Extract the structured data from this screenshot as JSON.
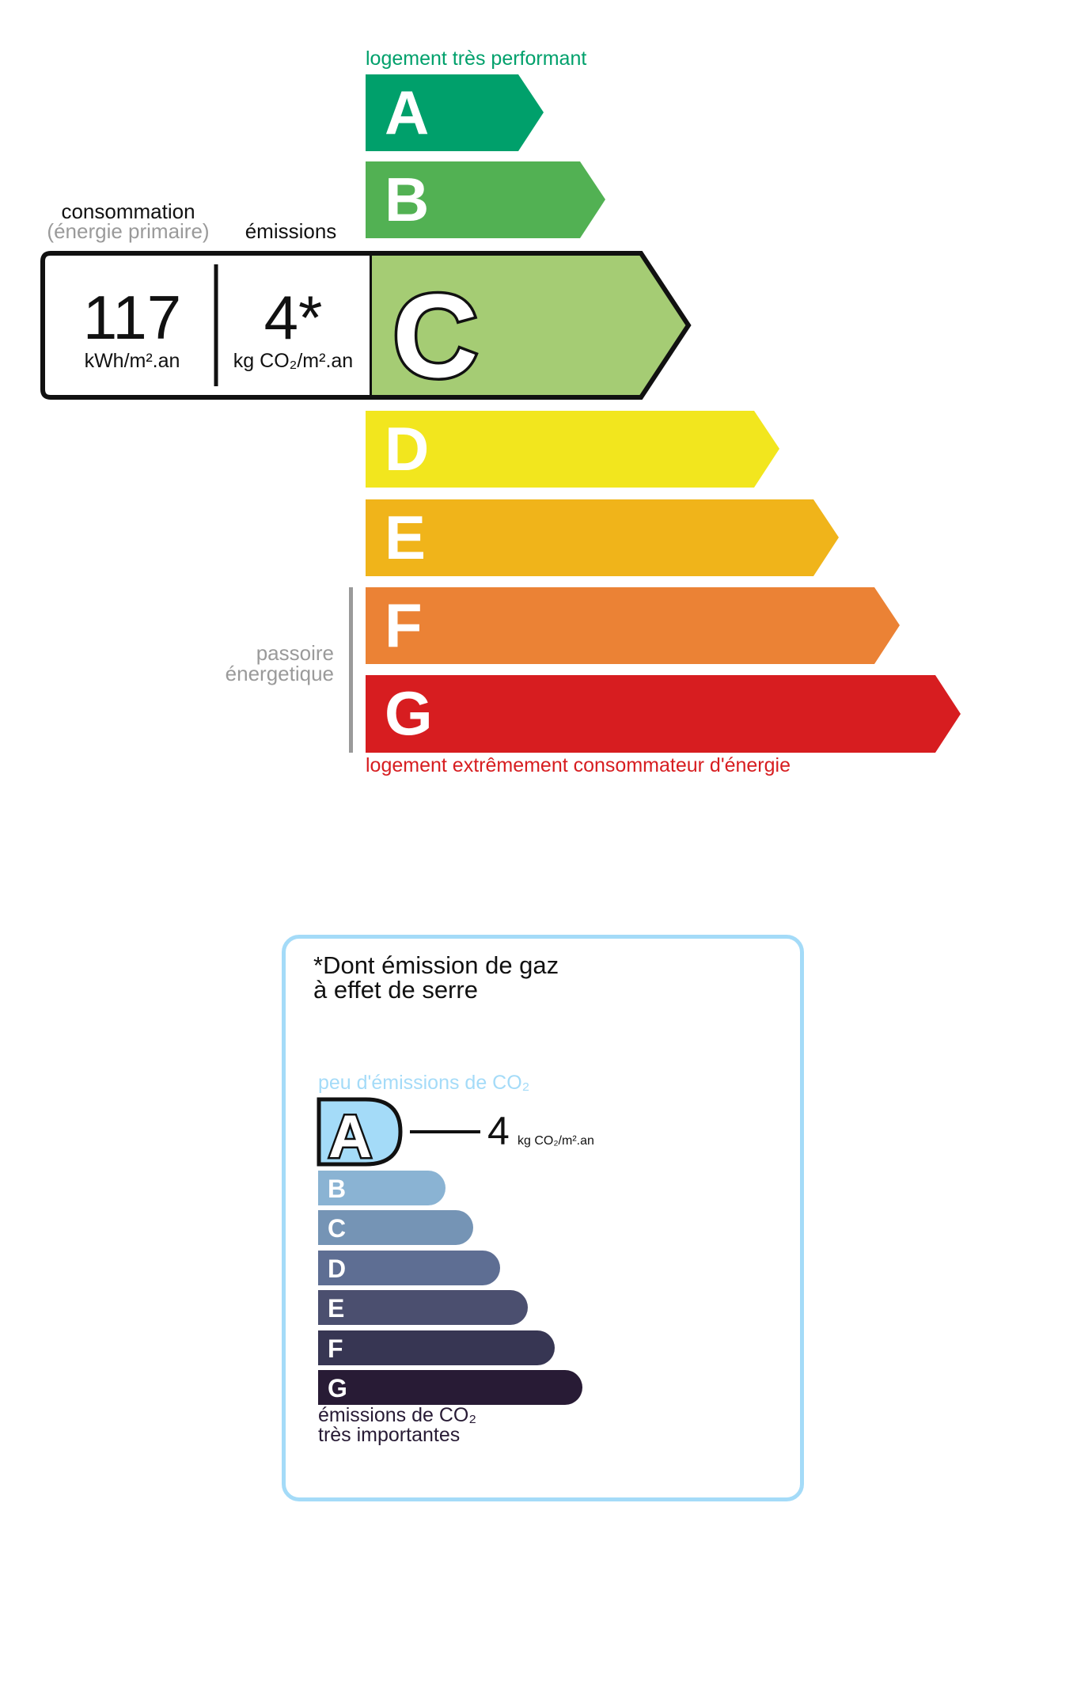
{
  "dpe": {
    "top_label": "logement très performant",
    "bottom_label": "logement extrêmement consommateur d'énergie",
    "passoire_line1": "passoire",
    "passoire_line2": "énergetique",
    "consumption_header": "consommation",
    "consumption_sub": "(énergie primaire)",
    "emissions_header": "émissions",
    "consumption_value": "117",
    "consumption_unit": "kWh/m².an",
    "emissions_value": "4*",
    "emissions_unit": "kg CO₂/m².an",
    "active_class": "C",
    "classes": [
      {
        "letter": "A",
        "color": "#00a06b"
      },
      {
        "letter": "B",
        "color": "#52b153"
      },
      {
        "letter": "C",
        "color": "#a5cc74"
      },
      {
        "letter": "D",
        "color": "#f2e61e"
      },
      {
        "letter": "E",
        "color": "#f0b41a"
      },
      {
        "letter": "F",
        "color": "#eb8235"
      },
      {
        "letter": "G",
        "color": "#d71d20"
      }
    ],
    "top_label_color": "#00a06b",
    "bottom_label_color": "#d71d20"
  },
  "ges": {
    "title_line1": "*Dont émission de gaz",
    "title_line2": "à effet de serre",
    "top_label": "peu d'émissions de CO₂",
    "bottom_line1": "émissions de CO₂",
    "bottom_line2": "très importantes",
    "active_class": "A",
    "value": "4",
    "unit": "kg CO₂/m².an",
    "border_color": "#a4dbf8",
    "classes": [
      {
        "letter": "A",
        "color": "#a4dbf8"
      },
      {
        "letter": "B",
        "color": "#8ab3d3"
      },
      {
        "letter": "C",
        "color": "#7594b5"
      },
      {
        "letter": "D",
        "color": "#5e6e93"
      },
      {
        "letter": "E",
        "color": "#4b4f6f"
      },
      {
        "letter": "F",
        "color": "#373653"
      },
      {
        "letter": "G",
        "color": "#281b35"
      }
    ]
  }
}
